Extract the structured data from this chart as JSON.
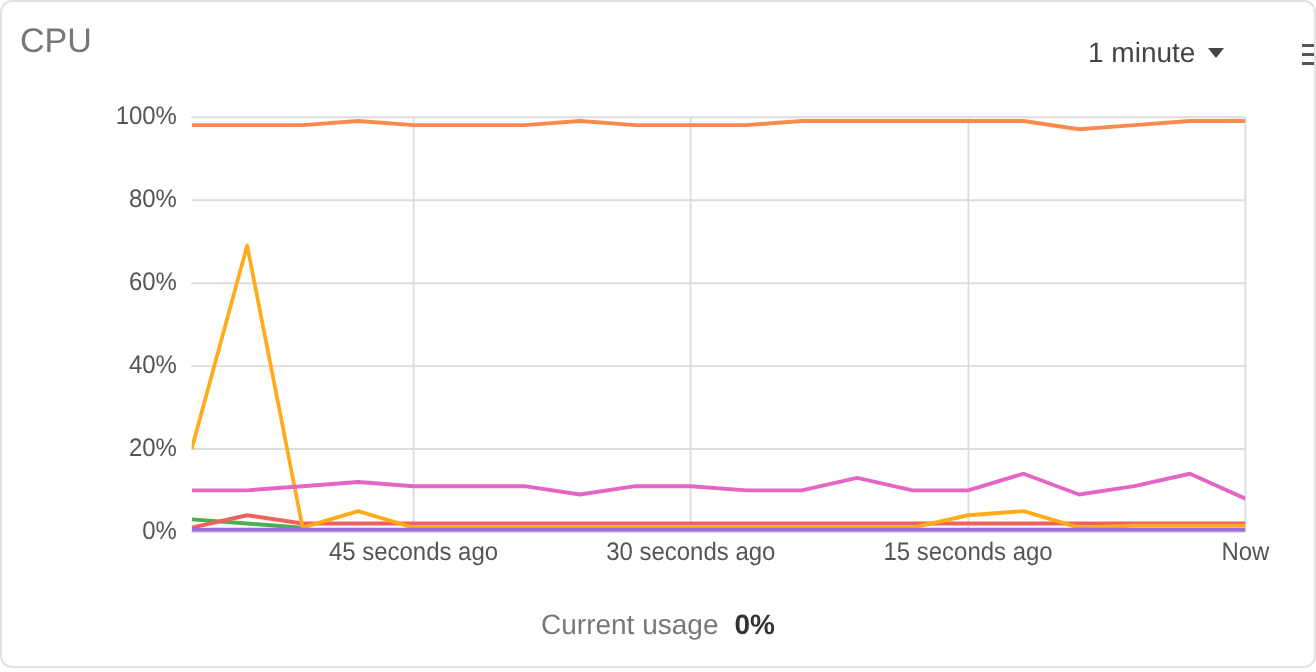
{
  "chart_data": {
    "type": "line",
    "title": "CPU",
    "annotations": [
      "1 minute",
      "Current usage",
      "0%"
    ],
    "x": [
      -57,
      -54,
      -51,
      -48,
      -45,
      -42,
      -39,
      -36,
      -33,
      -30,
      -27,
      -24,
      -21,
      -18,
      -15,
      -12,
      -9,
      -6,
      -3,
      0
    ],
    "xlim": [
      -57,
      0
    ],
    "xticks": [
      {
        "value": -45,
        "label": "45 seconds ago"
      },
      {
        "value": -30,
        "label": "30 seconds ago"
      },
      {
        "value": -15,
        "label": "15 seconds ago"
      },
      {
        "value": 0,
        "label": "Now"
      }
    ],
    "ylim": [
      0,
      100
    ],
    "yticks": [
      {
        "value": 0,
        "label": "0%"
      },
      {
        "value": 20,
        "label": "20%"
      },
      {
        "value": 40,
        "label": "40%"
      },
      {
        "value": 60,
        "label": "60%"
      },
      {
        "value": 80,
        "label": "80%"
      },
      {
        "value": 100,
        "label": "100%"
      }
    ],
    "grid": true,
    "legend": false,
    "marker": "none",
    "line_style": "solid",
    "series": [
      {
        "color": "#9c6ade",
        "values": [
          0.5,
          0.5,
          0.5,
          0.5,
          0.5,
          0.5,
          0.5,
          0.5,
          0.5,
          0.5,
          0.5,
          0.5,
          0.5,
          0.5,
          0.5,
          0.5,
          0.5,
          0.5,
          0.5,
          0.5
        ]
      },
      {
        "color": "#f98a4e",
        "values": [
          98,
          98,
          98,
          99,
          98,
          98,
          98,
          99,
          98,
          98,
          98,
          99,
          99,
          99,
          99,
          99,
          97,
          98,
          99,
          99
        ]
      },
      {
        "color": "#e466c4",
        "values": [
          10,
          10,
          11,
          12,
          11,
          11,
          11,
          9,
          11,
          11,
          10,
          10,
          13,
          10,
          10,
          14,
          9,
          11,
          14,
          8
        ]
      },
      {
        "color": "#ffab1a",
        "values": [
          20,
          69,
          1,
          5,
          1,
          1,
          1,
          1,
          1,
          1,
          1,
          1,
          1,
          1,
          4,
          5,
          1,
          1.5,
          1.5,
          1.5
        ]
      },
      {
        "color": "#f0605d",
        "values": [
          1,
          4,
          2,
          2,
          2,
          2,
          2,
          2,
          2,
          2,
          2,
          2,
          2,
          2,
          2,
          2,
          2,
          2,
          2,
          2
        ]
      },
      {
        "color": "#4caf50",
        "values": [
          3,
          2,
          1,
          null,
          null,
          null,
          null,
          null,
          null,
          null,
          null,
          null,
          null,
          null,
          null,
          null,
          null,
          null,
          null,
          null
        ]
      }
    ]
  }
}
